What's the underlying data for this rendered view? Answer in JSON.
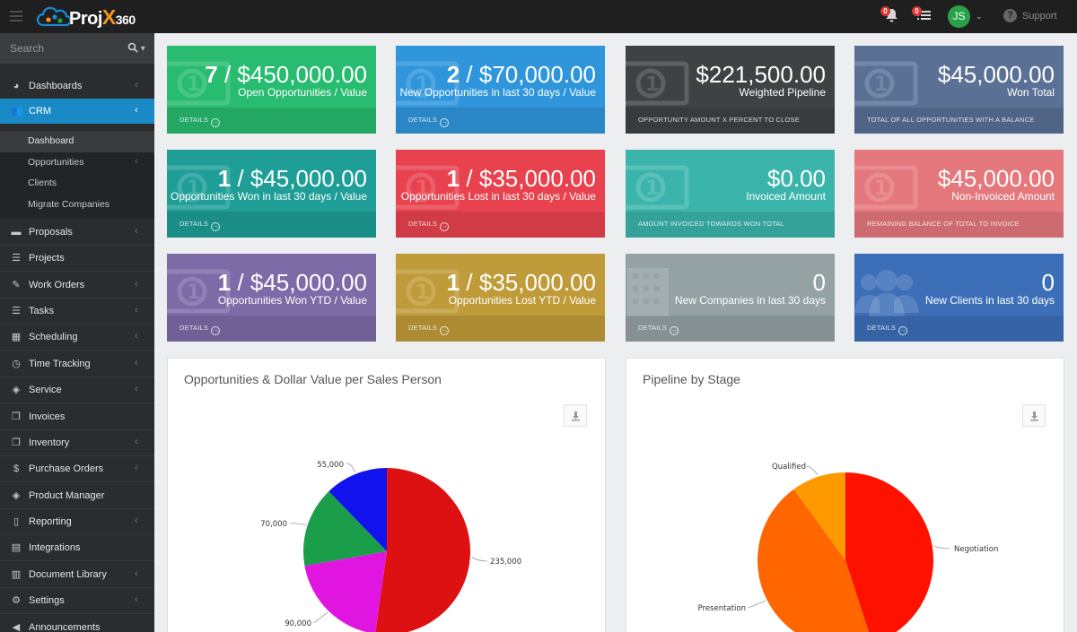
{
  "app": {
    "logo_text": "Proj",
    "logo_x": "X",
    "logo_num": "360",
    "notifications_count": "0",
    "tasks_count": "0",
    "user_initials": "JS",
    "support_label": "Support"
  },
  "sidebar": {
    "search_placeholder": "Search",
    "items": [
      {
        "label": "Dashboards",
        "icon": "dashboard-icon",
        "glyph": "◕",
        "chev": "‹"
      },
      {
        "label": "CRM",
        "icon": "users-icon",
        "glyph": "👥",
        "chev": "‹"
      },
      {
        "label": "Proposals",
        "icon": "briefcase-icon",
        "glyph": "▬",
        "chev": "‹"
      },
      {
        "label": "Projects",
        "icon": "list-icon",
        "glyph": "☰",
        "chev": ""
      },
      {
        "label": "Work Orders",
        "icon": "wrench-icon",
        "glyph": "✎",
        "chev": "‹"
      },
      {
        "label": "Tasks",
        "icon": "tasks-icon",
        "glyph": "☰",
        "chev": "‹"
      },
      {
        "label": "Scheduling",
        "icon": "calendar-icon",
        "glyph": "▦",
        "chev": "‹"
      },
      {
        "label": "Time Tracking",
        "icon": "clock-icon",
        "glyph": "◷",
        "chev": "‹"
      },
      {
        "label": "Service",
        "icon": "tag-icon",
        "glyph": "◈",
        "chev": "‹"
      },
      {
        "label": "Invoices",
        "icon": "copy-icon",
        "glyph": "❐",
        "chev": ""
      },
      {
        "label": "Inventory",
        "icon": "copy-icon",
        "glyph": "❐",
        "chev": "‹"
      },
      {
        "label": "Purchase Orders",
        "icon": "dollar-icon",
        "glyph": "$",
        "chev": "‹"
      },
      {
        "label": "Product Manager",
        "icon": "tags-icon",
        "glyph": "◈",
        "chev": ""
      },
      {
        "label": "Reporting",
        "icon": "file-icon",
        "glyph": "▯",
        "chev": "‹"
      },
      {
        "label": "Integrations",
        "icon": "file-text-icon",
        "glyph": "▤",
        "chev": ""
      },
      {
        "label": "Document Library",
        "icon": "book-icon",
        "glyph": "▥",
        "chev": "‹"
      },
      {
        "label": "Settings",
        "icon": "gear-icon",
        "glyph": "⚙",
        "chev": "‹"
      },
      {
        "label": "Announcements",
        "icon": "bullhorn-icon",
        "glyph": "◀",
        "chev": ""
      }
    ],
    "crm_sub": [
      {
        "label": "Dashboard",
        "chev": ""
      },
      {
        "label": "Opportunities",
        "chev": "‹"
      },
      {
        "label": "Clients",
        "chev": ""
      },
      {
        "label": "Migrate Companies",
        "chev": ""
      }
    ]
  },
  "tiles": [
    {
      "count": "7",
      "value": " / $450,000.00",
      "label": "Open Opportunities / Value",
      "footer": "DETAILS",
      "color": "#27bc6f"
    },
    {
      "count": "2",
      "value": " / $70,000.00",
      "label": "New Opportunities in last 30 days / Value",
      "footer": "DETAILS",
      "color": "#2f96dc"
    },
    {
      "count": "",
      "value": "$221,500.00",
      "label": "Weighted Pipeline",
      "footer": "OPPORTUNITY AMOUNT X PERCENT TO CLOSE",
      "color": "#404142"
    },
    {
      "count": "",
      "value": "$45,000.00",
      "label": "Won Total",
      "footer": "TOTAL OF ALL OPPORTUNITIES WITH A BALANCE",
      "color": "#5a7095"
    },
    {
      "count": "1",
      "value": " / $45,000.00",
      "label": "Opportunities Won in last 30 days / Value",
      "footer": "DETAILS",
      "color": "#1f9e97"
    },
    {
      "count": "1",
      "value": " / $35,000.00",
      "label": "Opportunities Lost in last 30 days / Value",
      "footer": "DETAILS",
      "color": "#e8424e"
    },
    {
      "count": "",
      "value": "$0.00",
      "label": "Invoiced Amount",
      "footer": "AMOUNT INVOICED TOWARDS WON TOTAL",
      "color": "#3bb5ab"
    },
    {
      "count": "",
      "value": "$45,000.00",
      "label": "Non-Invoiced Amount",
      "footer": "REMAINING BALANCE OF TOTAL TO INVOICE",
      "color": "#e5787d"
    },
    {
      "count": "1",
      "value": " / $45,000.00",
      "label": "Opportunities Won YTD / Value",
      "footer": "DETAILS",
      "color": "#7c6ba7"
    },
    {
      "count": "1",
      "value": " / $35,000.00",
      "label": "Opportunities Lost YTD / Value",
      "footer": "DETAILS",
      "color": "#c09b39"
    },
    {
      "count": "",
      "value": "0",
      "label": "New Companies in last 30 days",
      "footer": "DETAILS",
      "color": "#95a2a4"
    },
    {
      "count": "",
      "value": "0",
      "label": "New Clients in last 30 days",
      "footer": "DETAILS",
      "color": "#3d6fb9"
    }
  ],
  "panels": {
    "left_title": "Opportunities & Dollar Value per Sales Person",
    "right_title": "Pipeline by Stage"
  },
  "chart_data": [
    {
      "type": "pie",
      "title": "Opportunities & Dollar Value per Sales Person",
      "labels": [
        "235,000",
        "90,000",
        "70,000",
        "55,000"
      ],
      "values": [
        235000,
        90000,
        70000,
        55000
      ],
      "colors": [
        "#dd1111",
        "#e016e0",
        "#1a9e4a",
        "#1212ee"
      ]
    },
    {
      "type": "pie",
      "title": "Pipeline by Stage",
      "labels": [
        "Negotiation",
        "Presentation",
        "Qualified"
      ],
      "values": [
        45,
        45,
        10
      ],
      "colors": [
        "#ff1100",
        "#ff6600",
        "#ff9900"
      ]
    }
  ]
}
